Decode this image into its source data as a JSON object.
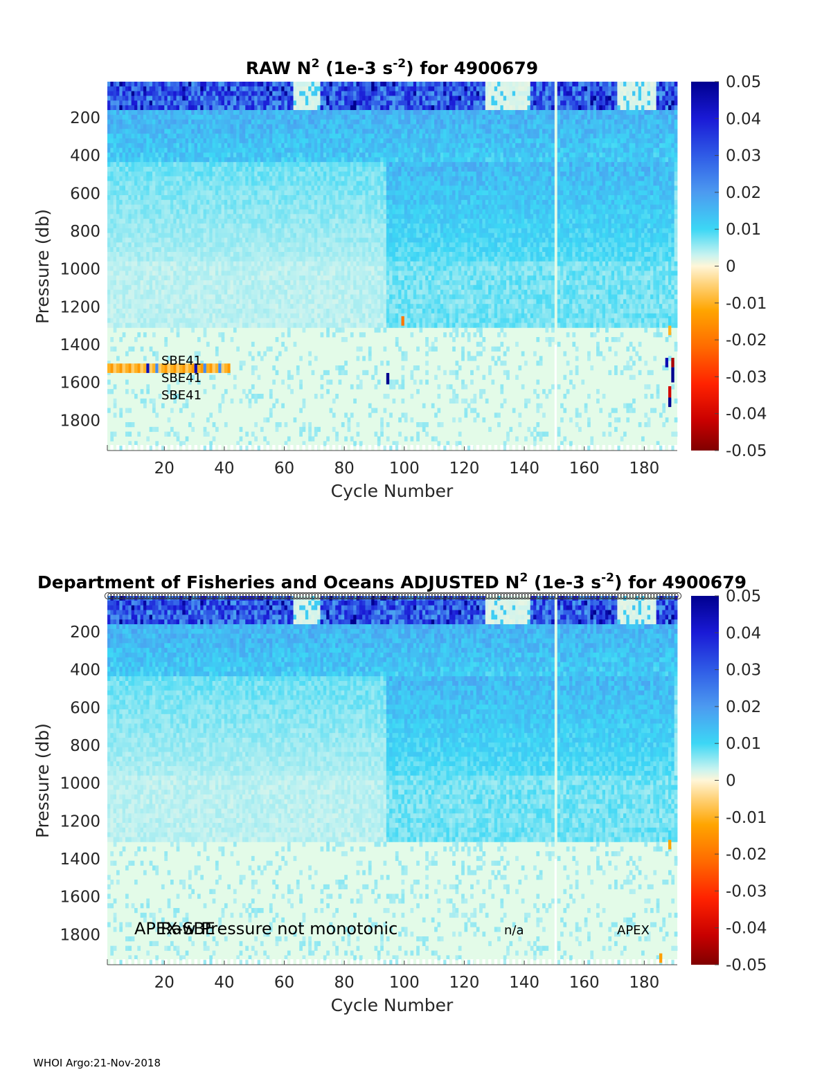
{
  "footer": "WHOI Argo:21-Nov-2018",
  "chart_data": [
    {
      "type": "heatmap",
      "title_prefix": "RAW N",
      "title_sup": "2",
      "title_mid": " (1e-3 s",
      "title_sup2": "-2",
      "title_suffix": ") for 4900679",
      "xlabel": "Cycle Number",
      "ylabel": "Pressure (db)",
      "xlim": [
        1,
        191
      ],
      "ylim": [
        1960,
        10
      ],
      "xticks": [
        "20",
        "40",
        "60",
        "80",
        "100",
        "120",
        "140",
        "160",
        "180"
      ],
      "yticks": [
        "200",
        "400",
        "600",
        "800",
        "1000",
        "1200",
        "1400",
        "1600",
        "1800"
      ],
      "colorbar": {
        "range": [
          -0.05,
          0.05
        ],
        "ticks": [
          "0.05",
          "0.04",
          "0.03",
          "0.02",
          "0.01",
          "0",
          "-0.01",
          "-0.02",
          "-0.03",
          "-0.04",
          "-0.05"
        ]
      },
      "annotations": [
        "SBE41",
        "SBE41",
        "SBE41"
      ]
    },
    {
      "type": "heatmap",
      "title_prefix": "Department of Fisheries and Oceans  ADJUSTED N",
      "title_sup": "2",
      "title_mid": " (1e-3 s",
      "title_sup2": "-2",
      "title_suffix": ") for 4900679",
      "xlabel": "Cycle Number",
      "ylabel": "Pressure (db)",
      "xlim": [
        1,
        191
      ],
      "ylim": [
        1960,
        10
      ],
      "xticks": [
        "20",
        "40",
        "60",
        "80",
        "100",
        "120",
        "140",
        "160",
        "180"
      ],
      "yticks": [
        "200",
        "400",
        "600",
        "800",
        "1000",
        "1200",
        "1400",
        "1600",
        "1800"
      ],
      "colorbar": {
        "range": [
          -0.05,
          0.05
        ],
        "ticks": [
          "0.05",
          "0.04",
          "0.03",
          "0.02",
          "0.01",
          "0",
          "-0.01",
          "-0.02",
          "-0.03",
          "-0.04",
          "-0.05"
        ]
      },
      "annotations": [
        "APEX-SBE",
        "Raw Pressure not monotonic",
        "n/a",
        "APEX"
      ]
    }
  ]
}
